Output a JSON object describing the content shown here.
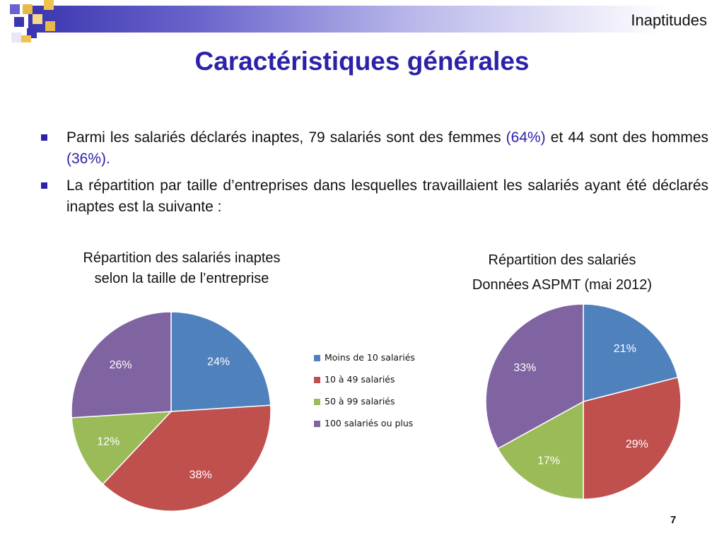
{
  "header": {
    "label": "Inaptitudes"
  },
  "title": "Caractéristiques générales",
  "bullets": [
    {
      "text_a": "Parmi les salariés déclarés inaptes, 79 salariés sont des femmes ",
      "hl_a": "(64%)",
      "text_b": " et 44 sont des hommes ",
      "hl_b": "(36%)."
    },
    {
      "text": "La répartition par taille d’entreprises dans lesquelles travaillaient les salariés ayant été déclarés inaptes est la suivante :"
    }
  ],
  "colors": {
    "accent": "#2b22a8",
    "blue": "#4f81bd",
    "red": "#c0504d",
    "green": "#9bbb59",
    "purple": "#8064a2"
  },
  "chart_data": [
    {
      "type": "pie",
      "title": "Répartition des salariés inaptes",
      "subtitle": "selon la taille de l’entreprise",
      "categories": [
        "Moins de 10 salariés",
        "10 à 49 salariés",
        "50 à 99 salariés",
        "100 salariés ou plus"
      ],
      "values": [
        24,
        38,
        12,
        26
      ],
      "labels": [
        "24%",
        "38%",
        "12%",
        "26%"
      ],
      "colors": [
        "#4f81bd",
        "#c0504d",
        "#9bbb59",
        "#8064a2"
      ],
      "legend": "right"
    },
    {
      "type": "pie",
      "title": "Répartition des salariés",
      "subtitle": "Données ASPMT (mai 2012)",
      "categories": [
        "Moins de 10 salariés",
        "10 à 49 salariés",
        "50 à 99 salariés",
        "100 salariés ou plus"
      ],
      "values": [
        21,
        29,
        17,
        33
      ],
      "labels": [
        "21%",
        "29%",
        "17%",
        "33%"
      ],
      "colors": [
        "#4f81bd",
        "#c0504d",
        "#9bbb59",
        "#8064a2"
      ]
    }
  ],
  "page_number": "7"
}
